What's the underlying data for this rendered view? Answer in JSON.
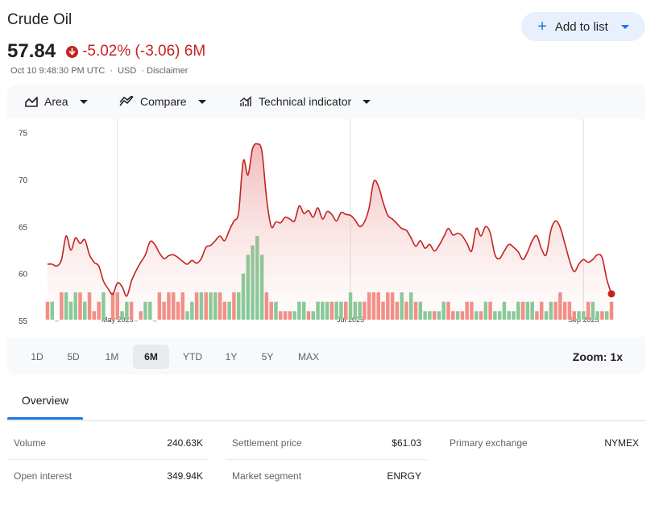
{
  "header": {
    "title": "Crude Oil",
    "add_label": "Add to list",
    "add_icon": "plus-icon"
  },
  "quote": {
    "price": "57.84",
    "change": "-5.02% (-3.06) 6M",
    "timestamp": "Oct 10 9:48:30 PM UTC",
    "currency": "USD",
    "disclaimer": "· Disclaimer",
    "down_color": "#c5221f"
  },
  "toolbar": {
    "chart_type": "Area",
    "compare": "Compare",
    "indicator": "Technical indicator"
  },
  "chart_data": {
    "type": "area",
    "title": "Crude Oil",
    "ylim": [
      55,
      76
    ],
    "yticks": [
      75,
      70,
      65,
      60,
      55
    ],
    "xtick_labels": [
      "May 2025",
      "Jul 2025",
      "Sep 2025"
    ],
    "xtick_index": [
      15,
      65,
      115
    ],
    "line_color": "#c5221f",
    "prices": [
      61.0,
      61.0,
      60.8,
      61.5,
      64.0,
      62.5,
      63.8,
      63.2,
      63.6,
      62.0,
      61.2,
      60.8,
      59.2,
      58.4,
      57.8,
      59.0,
      58.6,
      57.6,
      59.2,
      60.3,
      61.2,
      62.0,
      63.4,
      63.1,
      62.2,
      61.6,
      61.9,
      62.0,
      61.7,
      61.3,
      61.0,
      61.4,
      61.1,
      61.6,
      62.8,
      63.0,
      63.5,
      64.0,
      63.5,
      64.6,
      65.6,
      66.5,
      72.0,
      70.5,
      73.3,
      73.8,
      73.0,
      68.0,
      65.0,
      65.5,
      65.4,
      66.0,
      65.8,
      65.6,
      67.2,
      66.4,
      66.7,
      66.0,
      67.0,
      65.8,
      66.6,
      66.3,
      65.6,
      66.5,
      66.3,
      66.2,
      65.7,
      65.0,
      65.5,
      67.0,
      69.8,
      69.3,
      67.6,
      66.2,
      65.8,
      65.3,
      64.8,
      64.6,
      63.8,
      62.9,
      63.5,
      62.7,
      63.1,
      62.4,
      63.0,
      63.9,
      64.8,
      64.1,
      64.3,
      64.0,
      63.2,
      62.4,
      64.8,
      64.0,
      65.0,
      64.3,
      62.0,
      61.6,
      62.4,
      63.1,
      62.8,
      62.3,
      61.5,
      62.3,
      63.5,
      64.0,
      62.6,
      62.0,
      64.6,
      65.6,
      64.9,
      63.2,
      61.4,
      60.2,
      61.0,
      61.5,
      61.2,
      61.5,
      62.0,
      61.7,
      59.4,
      57.84
    ],
    "volumes": [
      57,
      57,
      55,
      58,
      58,
      57,
      58,
      58,
      57,
      58,
      56,
      57,
      58,
      55,
      58,
      58,
      56,
      57,
      57,
      55,
      56,
      57,
      57,
      55,
      58,
      57,
      58,
      58,
      57,
      58,
      56,
      57,
      58,
      58,
      58,
      58,
      58,
      58,
      57,
      57,
      58,
      58,
      60,
      62,
      63,
      64,
      62,
      58,
      57,
      57,
      56,
      56,
      56,
      56,
      57,
      57,
      56,
      56,
      57,
      57,
      57,
      57,
      57,
      57,
      57,
      58,
      57,
      57,
      57,
      58,
      58,
      58,
      57,
      58,
      58,
      57,
      58,
      57,
      58,
      57,
      57,
      56,
      56,
      56,
      56,
      57,
      57,
      56,
      56,
      56,
      57,
      57,
      56,
      56,
      57,
      57,
      56,
      56,
      57,
      56,
      56,
      57,
      57,
      57,
      57,
      56,
      57,
      56,
      57,
      57,
      58,
      57,
      57,
      56,
      56,
      56,
      57,
      57,
      56,
      56,
      56,
      57
    ],
    "volume_up": [
      false,
      true,
      true,
      false,
      true,
      true,
      true,
      false,
      true,
      false,
      false,
      false,
      true,
      false,
      false,
      false,
      true,
      true,
      false,
      true,
      false,
      true,
      true,
      false,
      false,
      false,
      false,
      false,
      false,
      false,
      true,
      true,
      false,
      true,
      false,
      true,
      true,
      false,
      false,
      true,
      false,
      true,
      true,
      true,
      true,
      true,
      true,
      false,
      false,
      true,
      false,
      false,
      false,
      true,
      true,
      true,
      false,
      true,
      true,
      true,
      true,
      false,
      true,
      true,
      false,
      true,
      true,
      true,
      false,
      false,
      false,
      false,
      false,
      false,
      false,
      false,
      true,
      false,
      true,
      false,
      true,
      true,
      true,
      false,
      true,
      true,
      false,
      false,
      true,
      false,
      false,
      false,
      true,
      false,
      true,
      false,
      true,
      true,
      true,
      true,
      true,
      true,
      false,
      true,
      true,
      false,
      false,
      true,
      true,
      false,
      false,
      false,
      false,
      false,
      true,
      true,
      false,
      true,
      true,
      false,
      true,
      false
    ],
    "up_color": "#81c995",
    "down_color": "#f28b82"
  },
  "ranges": {
    "items": [
      "1D",
      "5D",
      "1M",
      "6M",
      "YTD",
      "1Y",
      "5Y",
      "MAX"
    ],
    "active": "6M",
    "zoom": "Zoom: 1x"
  },
  "tabs": {
    "overview": "Overview"
  },
  "stats": {
    "volume_label": "Volume",
    "volume_value": "240.63K",
    "open_interest_label": "Open interest",
    "open_interest_value": "349.94K",
    "settlement_label": "Settlement price",
    "settlement_value": "$61.03",
    "segment_label": "Market segment",
    "segment_value": "ENRGY",
    "exchange_label": "Primary exchange",
    "exchange_value": "NYMEX"
  }
}
